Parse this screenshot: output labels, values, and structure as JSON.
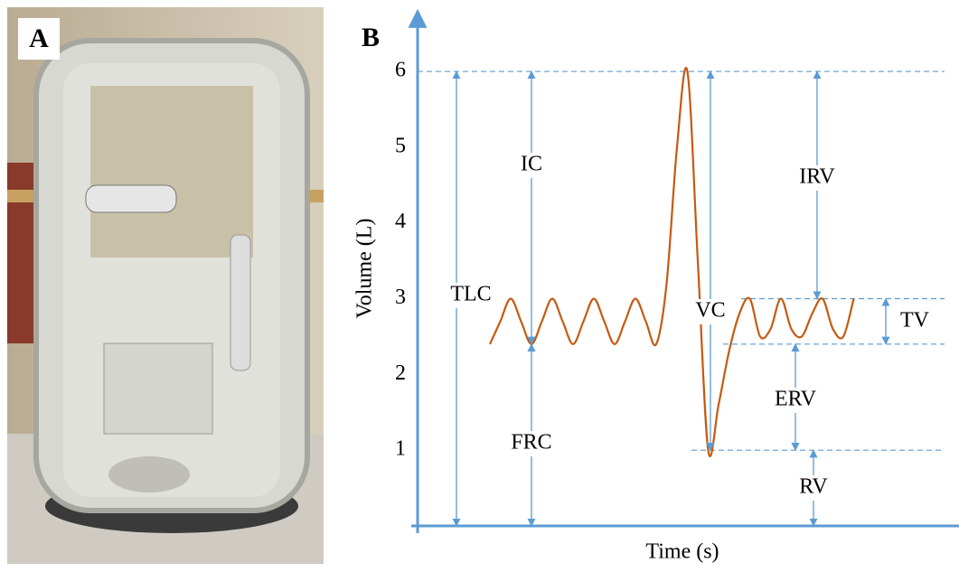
{
  "panel_labels": [
    "A",
    "B"
  ],
  "chart_data": {
    "type": "line",
    "ylabel": "Volume (L)",
    "xlabel": "Time (s)",
    "ylim": [
      0,
      6.8
    ],
    "yticks": [
      1,
      2,
      3,
      4,
      5,
      6
    ],
    "categories": [
      null,
      null,
      null,
      null,
      null,
      null,
      null,
      null,
      null,
      null,
      null,
      null,
      null,
      null,
      null,
      null,
      null,
      null,
      null,
      null,
      null,
      null,
      null,
      null,
      null,
      null,
      null,
      null,
      null,
      null,
      null,
      null,
      null,
      null,
      null,
      null
    ],
    "series": [
      {
        "color": "#c55a11",
        "values": [
          2.4,
          2.7,
          3.0,
          2.7,
          2.4,
          2.7,
          3.0,
          2.7,
          2.4,
          2.7,
          3.0,
          2.7,
          2.4,
          2.7,
          3.0,
          2.7,
          2.4,
          3.2,
          5.0,
          6.0,
          3.5,
          1.0,
          1.6,
          2.3,
          2.8,
          3.0,
          2.5,
          2.6,
          3.0,
          2.6,
          2.5,
          2.8,
          3.0,
          2.6,
          2.5,
          3.0
        ]
      }
    ],
    "reference_lines": [
      6,
      3,
      2.4,
      1
    ],
    "annotations": [
      {
        "text": "TLC",
        "from": 0,
        "to": 6
      },
      {
        "text": "IC",
        "from": 2.4,
        "to": 6
      },
      {
        "text": "FRC",
        "from": 0,
        "to": 2.4
      },
      {
        "text": "VC",
        "from": 1,
        "to": 6
      },
      {
        "text": "IRV",
        "from": 3,
        "to": 6
      },
      {
        "text": "TV",
        "from": 2.4,
        "to": 3
      },
      {
        "text": "ERV",
        "from": 1,
        "to": 2.4
      },
      {
        "text": "RV",
        "from": 0,
        "to": 1
      }
    ]
  }
}
